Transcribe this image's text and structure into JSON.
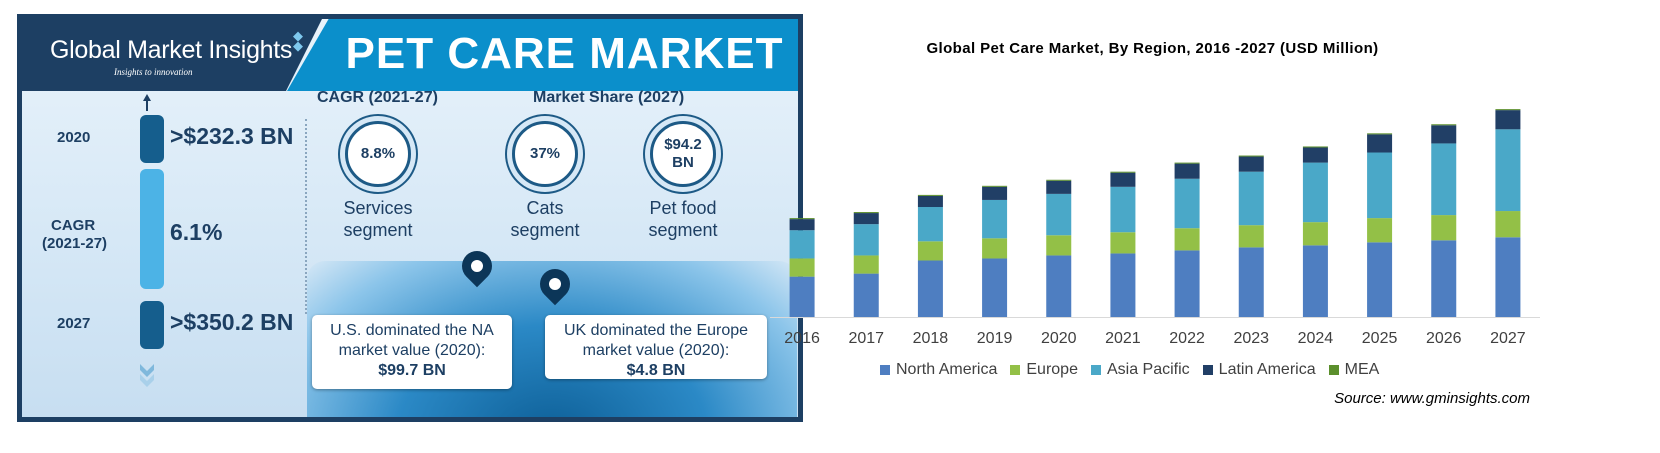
{
  "infographic": {
    "logo_name": "Global Market Insights",
    "logo_tagline": "Insights to innovation",
    "title": "PET CARE MARKET",
    "timeline": {
      "year_start": "2020",
      "value_start": ">$232.3 BN",
      "cagr_label_line1": "CAGR",
      "cagr_label_line2": "(2021-27)",
      "cagr_value": "6.1%",
      "year_end": "2027",
      "value_end": ">$350.2 BN"
    },
    "cagr_section_title": "CAGR (2021-27)",
    "share_section_title": "Market Share (2027)",
    "circles": [
      {
        "value": "8.8%",
        "label_line1": "Services",
        "label_line2": "segment"
      },
      {
        "value": "37%",
        "label_line1": "Cats",
        "label_line2": "segment"
      },
      {
        "value_line1": "$94.2",
        "value_line2": "BN",
        "label_line1": "Pet food",
        "label_line2": "segment"
      }
    ],
    "callouts": [
      {
        "line1": "U.S. dominated the NA",
        "line2": "market value (2020):",
        "value": "$99.7 BN"
      },
      {
        "line1": "UK dominated the Europe",
        "line2": "market value (2020):",
        "value": "$4.8 BN"
      }
    ]
  },
  "chart_data": {
    "type": "bar",
    "stacked": true,
    "title": "Global Pet Care Market, By Region, 2016 -2027 (USD Million)",
    "categories": [
      "2016",
      "2017",
      "2018",
      "2019",
      "2020",
      "2021",
      "2022",
      "2023",
      "2024",
      "2025",
      "2026",
      "2027"
    ],
    "series": [
      {
        "name": "North America",
        "color": "#4e7ec1",
        "values": [
          40,
          43,
          56,
          58,
          61,
          63,
          66,
          69,
          71,
          74,
          76,
          79
        ]
      },
      {
        "name": "Europe",
        "color": "#93c047",
        "values": [
          18,
          18,
          19,
          20,
          20,
          21,
          22,
          22,
          23,
          24,
          25,
          26
        ]
      },
      {
        "name": "Asia Pacific",
        "color": "#4aa8c8",
        "values": [
          28,
          31,
          34,
          38,
          41,
          45,
          49,
          53,
          59,
          65,
          71,
          81
        ]
      },
      {
        "name": "Latin America",
        "color": "#213f66",
        "values": [
          11,
          11,
          11,
          13,
          13,
          14,
          15,
          15,
          15,
          18,
          18,
          19
        ]
      },
      {
        "name": "MEA",
        "color": "#5b8f2c",
        "values": [
          1,
          1,
          1,
          1,
          1,
          1,
          1,
          1,
          1,
          1,
          1,
          1
        ]
      }
    ],
    "ylim": [
      0,
      220
    ],
    "grid": false,
    "legend_position": "bottom",
    "source": "Source: www.gminsights.com"
  }
}
